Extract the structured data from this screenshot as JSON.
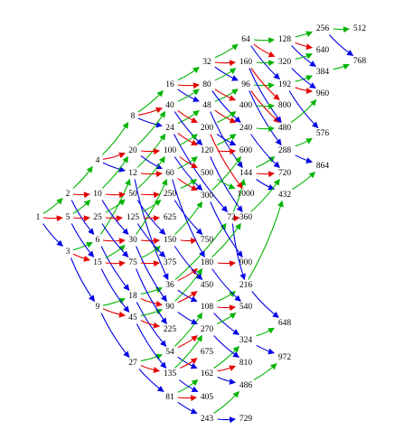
{
  "colors": {
    "x2": "#00b400",
    "x5": "#e60000",
    "x3": "#0000e6"
  },
  "nodes": [
    {
      "id": "n1",
      "label": "1"
    },
    {
      "id": "n2",
      "label": "2"
    },
    {
      "id": "n3",
      "label": "3"
    },
    {
      "id": "n4",
      "label": "4"
    },
    {
      "id": "n5",
      "label": "5"
    },
    {
      "id": "n6",
      "label": "6"
    },
    {
      "id": "n8",
      "label": "8"
    },
    {
      "id": "n9",
      "label": "9"
    },
    {
      "id": "n10",
      "label": "10"
    },
    {
      "id": "n12",
      "label": "12"
    },
    {
      "id": "n15",
      "label": "15"
    },
    {
      "id": "n16",
      "label": "16"
    },
    {
      "id": "n18",
      "label": "18"
    },
    {
      "id": "n20",
      "label": "20"
    },
    {
      "id": "n24",
      "label": "24"
    },
    {
      "id": "n25",
      "label": "25"
    },
    {
      "id": "n27",
      "label": "27"
    },
    {
      "id": "n30",
      "label": "30"
    },
    {
      "id": "n32",
      "label": "32"
    },
    {
      "id": "n36",
      "label": "36"
    },
    {
      "id": "n40",
      "label": "40"
    },
    {
      "id": "n45",
      "label": "45"
    },
    {
      "id": "n48",
      "label": "48"
    },
    {
      "id": "n50",
      "label": "50"
    },
    {
      "id": "n54",
      "label": "54"
    },
    {
      "id": "n60",
      "label": "60"
    },
    {
      "id": "n64",
      "label": "64"
    },
    {
      "id": "n72",
      "label": "72"
    },
    {
      "id": "n75",
      "label": "75"
    },
    {
      "id": "n80",
      "label": "80"
    },
    {
      "id": "n81",
      "label": "81"
    },
    {
      "id": "n90",
      "label": "90"
    },
    {
      "id": "n96",
      "label": "96"
    },
    {
      "id": "n100",
      "label": "100"
    },
    {
      "id": "n108",
      "label": "108"
    },
    {
      "id": "n120",
      "label": "120"
    },
    {
      "id": "n125",
      "label": "125"
    },
    {
      "id": "n128",
      "label": "128"
    },
    {
      "id": "n135",
      "label": "135"
    },
    {
      "id": "n144",
      "label": "144"
    },
    {
      "id": "n150",
      "label": "150"
    },
    {
      "id": "n160",
      "label": "160"
    },
    {
      "id": "n162",
      "label": "162"
    },
    {
      "id": "n180",
      "label": "180"
    },
    {
      "id": "n192",
      "label": "192"
    },
    {
      "id": "n200",
      "label": "200"
    },
    {
      "id": "n216",
      "label": "216"
    },
    {
      "id": "n225",
      "label": "225"
    },
    {
      "id": "n240",
      "label": "240"
    },
    {
      "id": "n243",
      "label": "243"
    },
    {
      "id": "n250",
      "label": "250"
    },
    {
      "id": "n256",
      "label": "256"
    },
    {
      "id": "n270",
      "label": "270"
    },
    {
      "id": "n288",
      "label": "288"
    },
    {
      "id": "n300",
      "label": "300"
    },
    {
      "id": "n320",
      "label": "320"
    },
    {
      "id": "n324",
      "label": "324"
    },
    {
      "id": "n360",
      "label": "360"
    },
    {
      "id": "n375",
      "label": "375"
    },
    {
      "id": "n384",
      "label": "384"
    },
    {
      "id": "n400",
      "label": "400"
    },
    {
      "id": "n405",
      "label": "405"
    },
    {
      "id": "n432",
      "label": "432"
    },
    {
      "id": "n450",
      "label": "450"
    },
    {
      "id": "n480",
      "label": "480"
    },
    {
      "id": "n486",
      "label": "486"
    },
    {
      "id": "n500",
      "label": "500"
    },
    {
      "id": "n512",
      "label": "512"
    },
    {
      "id": "n540",
      "label": "540"
    },
    {
      "id": "n576",
      "label": "576"
    },
    {
      "id": "n600",
      "label": "600"
    },
    {
      "id": "n625",
      "label": "625"
    },
    {
      "id": "n640",
      "label": "640"
    },
    {
      "id": "n648",
      "label": "648"
    },
    {
      "id": "n675",
      "label": "675"
    },
    {
      "id": "n720",
      "label": "720"
    },
    {
      "id": "n729",
      "label": "729"
    },
    {
      "id": "n750",
      "label": "750"
    },
    {
      "id": "n768",
      "label": "768"
    },
    {
      "id": "n800",
      "label": "800"
    },
    {
      "id": "n810",
      "label": "810"
    },
    {
      "id": "n864",
      "label": "864"
    },
    {
      "id": "n900",
      "label": "900"
    },
    {
      "id": "n960",
      "label": "960"
    },
    {
      "id": "n972",
      "label": "972"
    },
    {
      "id": "n1000",
      "label": "1000"
    }
  ],
  "edges": [
    {
      "from": "n1",
      "to": "n2",
      "kind": "x2"
    },
    {
      "from": "n1",
      "to": "n5",
      "kind": "x5"
    },
    {
      "from": "n1",
      "to": "n3",
      "kind": "x3"
    },
    {
      "from": "n2",
      "to": "n4",
      "kind": "x2"
    },
    {
      "from": "n2",
      "to": "n10",
      "kind": "x5"
    },
    {
      "from": "n2",
      "to": "n6",
      "kind": "x3"
    },
    {
      "from": "n3",
      "to": "n6",
      "kind": "x2"
    },
    {
      "from": "n3",
      "to": "n15",
      "kind": "x5"
    },
    {
      "from": "n3",
      "to": "n9",
      "kind": "x3"
    },
    {
      "from": "n4",
      "to": "n8",
      "kind": "x2"
    },
    {
      "from": "n4",
      "to": "n20",
      "kind": "x5"
    },
    {
      "from": "n4",
      "to": "n12",
      "kind": "x3"
    },
    {
      "from": "n5",
      "to": "n10",
      "kind": "x2"
    },
    {
      "from": "n5",
      "to": "n25",
      "kind": "x5"
    },
    {
      "from": "n5",
      "to": "n15",
      "kind": "x3"
    },
    {
      "from": "n6",
      "to": "n12",
      "kind": "x2"
    },
    {
      "from": "n6",
      "to": "n30",
      "kind": "x5"
    },
    {
      "from": "n6",
      "to": "n18",
      "kind": "x3"
    },
    {
      "from": "n8",
      "to": "n16",
      "kind": "x2"
    },
    {
      "from": "n8",
      "to": "n40",
      "kind": "x5"
    },
    {
      "from": "n8",
      "to": "n24",
      "kind": "x3"
    },
    {
      "from": "n9",
      "to": "n18",
      "kind": "x2"
    },
    {
      "from": "n9",
      "to": "n45",
      "kind": "x5"
    },
    {
      "from": "n9",
      "to": "n27",
      "kind": "x3"
    },
    {
      "from": "n10",
      "to": "n20",
      "kind": "x2"
    },
    {
      "from": "n10",
      "to": "n50",
      "kind": "x5"
    },
    {
      "from": "n10",
      "to": "n30",
      "kind": "x3"
    },
    {
      "from": "n12",
      "to": "n24",
      "kind": "x2"
    },
    {
      "from": "n12",
      "to": "n60",
      "kind": "x5"
    },
    {
      "from": "n12",
      "to": "n36",
      "kind": "x3"
    },
    {
      "from": "n15",
      "to": "n30",
      "kind": "x2"
    },
    {
      "from": "n15",
      "to": "n75",
      "kind": "x5"
    },
    {
      "from": "n15",
      "to": "n45",
      "kind": "x3"
    },
    {
      "from": "n16",
      "to": "n32",
      "kind": "x2"
    },
    {
      "from": "n16",
      "to": "n80",
      "kind": "x5"
    },
    {
      "from": "n16",
      "to": "n48",
      "kind": "x3"
    },
    {
      "from": "n18",
      "to": "n36",
      "kind": "x2"
    },
    {
      "from": "n18",
      "to": "n90",
      "kind": "x5"
    },
    {
      "from": "n18",
      "to": "n54",
      "kind": "x3"
    },
    {
      "from": "n20",
      "to": "n40",
      "kind": "x2"
    },
    {
      "from": "n20",
      "to": "n100",
      "kind": "x5"
    },
    {
      "from": "n20",
      "to": "n60",
      "kind": "x3"
    },
    {
      "from": "n24",
      "to": "n48",
      "kind": "x2"
    },
    {
      "from": "n24",
      "to": "n120",
      "kind": "x5"
    },
    {
      "from": "n24",
      "to": "n72",
      "kind": "x3"
    },
    {
      "from": "n25",
      "to": "n50",
      "kind": "x2"
    },
    {
      "from": "n25",
      "to": "n125",
      "kind": "x5"
    },
    {
      "from": "n25",
      "to": "n75",
      "kind": "x3"
    },
    {
      "from": "n27",
      "to": "n54",
      "kind": "x2"
    },
    {
      "from": "n27",
      "to": "n135",
      "kind": "x5"
    },
    {
      "from": "n27",
      "to": "n81",
      "kind": "x3"
    },
    {
      "from": "n30",
      "to": "n60",
      "kind": "x2"
    },
    {
      "from": "n30",
      "to": "n150",
      "kind": "x5"
    },
    {
      "from": "n30",
      "to": "n90",
      "kind": "x3"
    },
    {
      "from": "n32",
      "to": "n64",
      "kind": "x2"
    },
    {
      "from": "n32",
      "to": "n160",
      "kind": "x5"
    },
    {
      "from": "n32",
      "to": "n96",
      "kind": "x3"
    },
    {
      "from": "n36",
      "to": "n72",
      "kind": "x2"
    },
    {
      "from": "n36",
      "to": "n180",
      "kind": "x5"
    },
    {
      "from": "n36",
      "to": "n108",
      "kind": "x3"
    },
    {
      "from": "n40",
      "to": "n80",
      "kind": "x2"
    },
    {
      "from": "n40",
      "to": "n200",
      "kind": "x5"
    },
    {
      "from": "n40",
      "to": "n120",
      "kind": "x3"
    },
    {
      "from": "n45",
      "to": "n90",
      "kind": "x2"
    },
    {
      "from": "n45",
      "to": "n225",
      "kind": "x5"
    },
    {
      "from": "n45",
      "to": "n135",
      "kind": "x3"
    },
    {
      "from": "n48",
      "to": "n96",
      "kind": "x2"
    },
    {
      "from": "n48",
      "to": "n240",
      "kind": "x5"
    },
    {
      "from": "n48",
      "to": "n144",
      "kind": "x3"
    },
    {
      "from": "n50",
      "to": "n100",
      "kind": "x2"
    },
    {
      "from": "n50",
      "to": "n250",
      "kind": "x5"
    },
    {
      "from": "n50",
      "to": "n150",
      "kind": "x3"
    },
    {
      "from": "n54",
      "to": "n108",
      "kind": "x2"
    },
    {
      "from": "n54",
      "to": "n270",
      "kind": "x5"
    },
    {
      "from": "n54",
      "to": "n162",
      "kind": "x3"
    },
    {
      "from": "n60",
      "to": "n120",
      "kind": "x2"
    },
    {
      "from": "n60",
      "to": "n300",
      "kind": "x5"
    },
    {
      "from": "n60",
      "to": "n180",
      "kind": "x3"
    },
    {
      "from": "n64",
      "to": "n128",
      "kind": "x2"
    },
    {
      "from": "n64",
      "to": "n320",
      "kind": "x5"
    },
    {
      "from": "n64",
      "to": "n192",
      "kind": "x3"
    },
    {
      "from": "n72",
      "to": "n144",
      "kind": "x2"
    },
    {
      "from": "n72",
      "to": "n360",
      "kind": "x5"
    },
    {
      "from": "n72",
      "to": "n216",
      "kind": "x3"
    },
    {
      "from": "n75",
      "to": "n150",
      "kind": "x2"
    },
    {
      "from": "n75",
      "to": "n375",
      "kind": "x5"
    },
    {
      "from": "n75",
      "to": "n225",
      "kind": "x3"
    },
    {
      "from": "n80",
      "to": "n160",
      "kind": "x2"
    },
    {
      "from": "n80",
      "to": "n400",
      "kind": "x5"
    },
    {
      "from": "n80",
      "to": "n240",
      "kind": "x3"
    },
    {
      "from": "n81",
      "to": "n162",
      "kind": "x2"
    },
    {
      "from": "n81",
      "to": "n405",
      "kind": "x5"
    },
    {
      "from": "n81",
      "to": "n243",
      "kind": "x3"
    },
    {
      "from": "n90",
      "to": "n180",
      "kind": "x2"
    },
    {
      "from": "n90",
      "to": "n450",
      "kind": "x5"
    },
    {
      "from": "n90",
      "to": "n270",
      "kind": "x3"
    },
    {
      "from": "n96",
      "to": "n192",
      "kind": "x2"
    },
    {
      "from": "n96",
      "to": "n480",
      "kind": "x5"
    },
    {
      "from": "n96",
      "to": "n288",
      "kind": "x3"
    },
    {
      "from": "n100",
      "to": "n200",
      "kind": "x2"
    },
    {
      "from": "n100",
      "to": "n500",
      "kind": "x5"
    },
    {
      "from": "n100",
      "to": "n300",
      "kind": "x3"
    },
    {
      "from": "n108",
      "to": "n216",
      "kind": "x2"
    },
    {
      "from": "n108",
      "to": "n540",
      "kind": "x5"
    },
    {
      "from": "n108",
      "to": "n324",
      "kind": "x3"
    },
    {
      "from": "n120",
      "to": "n240",
      "kind": "x2"
    },
    {
      "from": "n120",
      "to": "n600",
      "kind": "x5"
    },
    {
      "from": "n120",
      "to": "n360",
      "kind": "x3"
    },
    {
      "from": "n125",
      "to": "n250",
      "kind": "x2"
    },
    {
      "from": "n125",
      "to": "n625",
      "kind": "x5"
    },
    {
      "from": "n125",
      "to": "n375",
      "kind": "x3"
    },
    {
      "from": "n128",
      "to": "n256",
      "kind": "x2"
    },
    {
      "from": "n128",
      "to": "n640",
      "kind": "x5"
    },
    {
      "from": "n128",
      "to": "n384",
      "kind": "x3"
    },
    {
      "from": "n135",
      "to": "n270",
      "kind": "x2"
    },
    {
      "from": "n135",
      "to": "n675",
      "kind": "x5"
    },
    {
      "from": "n135",
      "to": "n405",
      "kind": "x3"
    },
    {
      "from": "n144",
      "to": "n288",
      "kind": "x2"
    },
    {
      "from": "n144",
      "to": "n720",
      "kind": "x5"
    },
    {
      "from": "n144",
      "to": "n432",
      "kind": "x3"
    },
    {
      "from": "n150",
      "to": "n300",
      "kind": "x2"
    },
    {
      "from": "n150",
      "to": "n750",
      "kind": "x5"
    },
    {
      "from": "n150",
      "to": "n450",
      "kind": "x3"
    },
    {
      "from": "n160",
      "to": "n320",
      "kind": "x2"
    },
    {
      "from": "n160",
      "to": "n800",
      "kind": "x5"
    },
    {
      "from": "n160",
      "to": "n480",
      "kind": "x3"
    },
    {
      "from": "n162",
      "to": "n324",
      "kind": "x2"
    },
    {
      "from": "n162",
      "to": "n810",
      "kind": "x5"
    },
    {
      "from": "n162",
      "to": "n486",
      "kind": "x3"
    },
    {
      "from": "n180",
      "to": "n360",
      "kind": "x2"
    },
    {
      "from": "n180",
      "to": "n900",
      "kind": "x5"
    },
    {
      "from": "n180",
      "to": "n540",
      "kind": "x3"
    },
    {
      "from": "n192",
      "to": "n384",
      "kind": "x2"
    },
    {
      "from": "n192",
      "to": "n960",
      "kind": "x5"
    },
    {
      "from": "n192",
      "to": "n576",
      "kind": "x3"
    },
    {
      "from": "n200",
      "to": "n400",
      "kind": "x2"
    },
    {
      "from": "n200",
      "to": "n1000",
      "kind": "x5"
    },
    {
      "from": "n200",
      "to": "n600",
      "kind": "x3"
    },
    {
      "from": "n216",
      "to": "n432",
      "kind": "x2"
    },
    {
      "from": "n216",
      "to": "n648",
      "kind": "x3"
    },
    {
      "from": "n240",
      "to": "n480",
      "kind": "x2"
    },
    {
      "from": "n240",
      "to": "n720",
      "kind": "x3"
    },
    {
      "from": "n243",
      "to": "n486",
      "kind": "x2"
    },
    {
      "from": "n243",
      "to": "n729",
      "kind": "x3"
    },
    {
      "from": "n250",
      "to": "n500",
      "kind": "x2"
    },
    {
      "from": "n250",
      "to": "n750",
      "kind": "x3"
    },
    {
      "from": "n256",
      "to": "n512",
      "kind": "x2"
    },
    {
      "from": "n256",
      "to": "n768",
      "kind": "x3"
    },
    {
      "from": "n270",
      "to": "n540",
      "kind": "x2"
    },
    {
      "from": "n270",
      "to": "n810",
      "kind": "x3"
    },
    {
      "from": "n288",
      "to": "n576",
      "kind": "x2"
    },
    {
      "from": "n288",
      "to": "n864",
      "kind": "x3"
    },
    {
      "from": "n300",
      "to": "n600",
      "kind": "x2"
    },
    {
      "from": "n300",
      "to": "n900",
      "kind": "x3"
    },
    {
      "from": "n320",
      "to": "n640",
      "kind": "x2"
    },
    {
      "from": "n320",
      "to": "n960",
      "kind": "x3"
    },
    {
      "from": "n324",
      "to": "n648",
      "kind": "x2"
    },
    {
      "from": "n324",
      "to": "n972",
      "kind": "x3"
    },
    {
      "from": "n360",
      "to": "n720",
      "kind": "x2"
    },
    {
      "from": "n384",
      "to": "n768",
      "kind": "x2"
    },
    {
      "from": "n400",
      "to": "n800",
      "kind": "x2"
    },
    {
      "from": "n432",
      "to": "n864",
      "kind": "x2"
    },
    {
      "from": "n480",
      "to": "n960",
      "kind": "x2"
    },
    {
      "from": "n486",
      "to": "n972",
      "kind": "x2"
    },
    {
      "from": "n500",
      "to": "n1000",
      "kind": "x2"
    }
  ]
}
